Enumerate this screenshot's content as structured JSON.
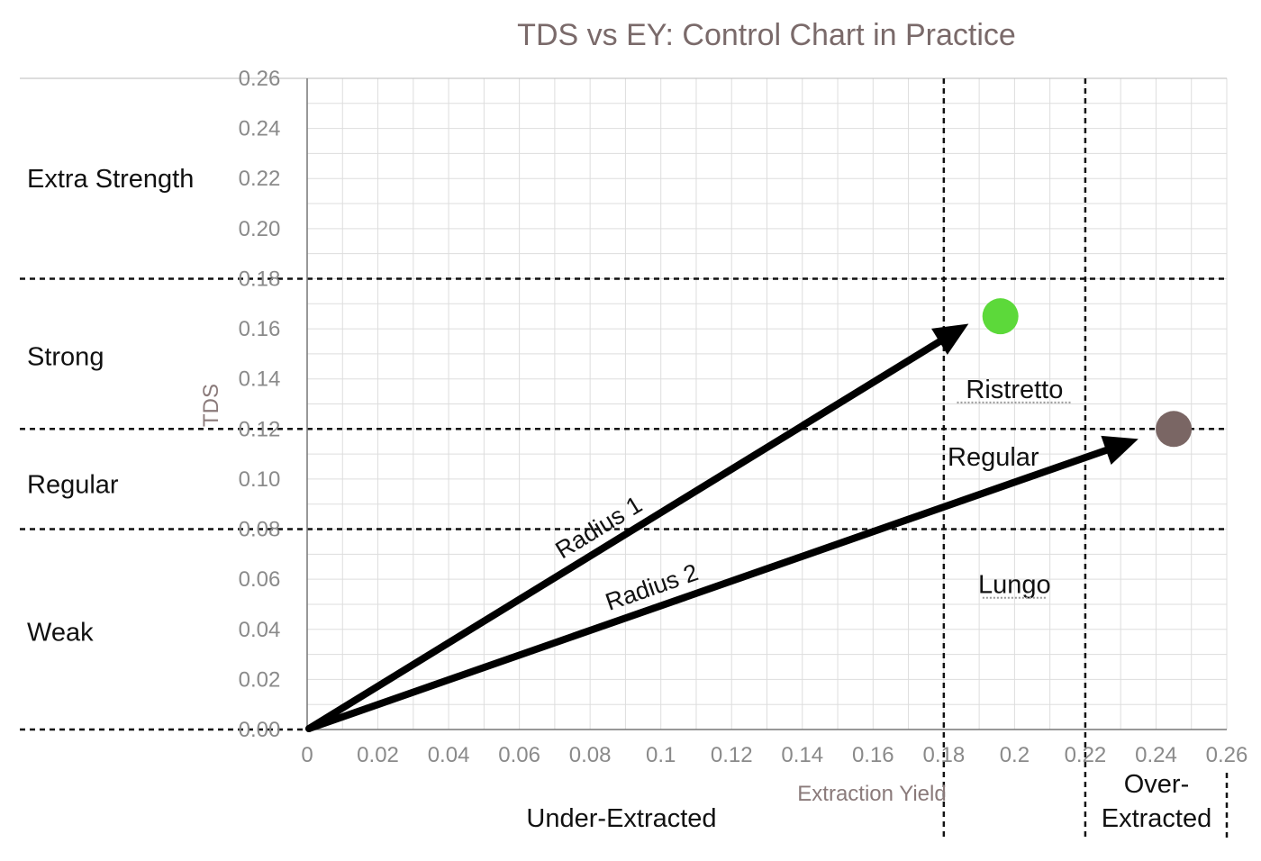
{
  "chart_data": {
    "type": "scatter",
    "title": "TDS vs EY: Control Chart in Practice",
    "xlabel": "Extraction Yield",
    "ylabel": "TDS",
    "xlim": [
      0,
      0.26
    ],
    "ylim": [
      0,
      0.26
    ],
    "x_ticks": [
      "0",
      "0.02",
      "0.04",
      "0.06",
      "0.08",
      "0.1",
      "0.12",
      "0.14",
      "0.16",
      "0.18",
      "0.2",
      "0.22",
      "0.24",
      "0.26"
    ],
    "y_ticks": [
      "0.00",
      "0.02",
      "0.04",
      "0.06",
      "0.08",
      "0.10",
      "0.12",
      "0.14",
      "0.16",
      "0.18",
      "0.20",
      "0.22",
      "0.24",
      "0.26"
    ],
    "grid": true,
    "points": [
      {
        "x": 0.196,
        "y": 0.165,
        "color": "#5cd93a"
      },
      {
        "x": 0.245,
        "y": 0.12,
        "color": "#7a6664"
      }
    ],
    "arrows": [
      {
        "label": "Radius 1",
        "from": [
          0,
          0
        ],
        "to": [
          0.187,
          0.162
        ]
      },
      {
        "label": "Radius 2",
        "from": [
          0,
          0
        ],
        "to": [
          0.235,
          0.116
        ]
      }
    ],
    "tds_thresholds": [
      0.08,
      0.12,
      0.18
    ],
    "ey_thresholds": [
      0.18,
      0.22
    ],
    "tds_bands": [
      {
        "label": "Extra Strength",
        "y": 0.22
      },
      {
        "label": "Strong",
        "y": 0.149
      },
      {
        "label": "Regular",
        "y": 0.098
      },
      {
        "label": "Weak",
        "y": 0.039
      }
    ],
    "zone_labels": [
      {
        "label": "Ristretto",
        "x": 0.2,
        "y": 0.136
      },
      {
        "label": "Regular",
        "x": 0.194,
        "y": 0.109
      },
      {
        "label": "Lungo",
        "x": 0.2,
        "y": 0.058
      }
    ],
    "ey_regions": [
      {
        "label": "Under-Extracted"
      },
      {
        "label": "Over-",
        "label2": "Extracted"
      }
    ]
  }
}
